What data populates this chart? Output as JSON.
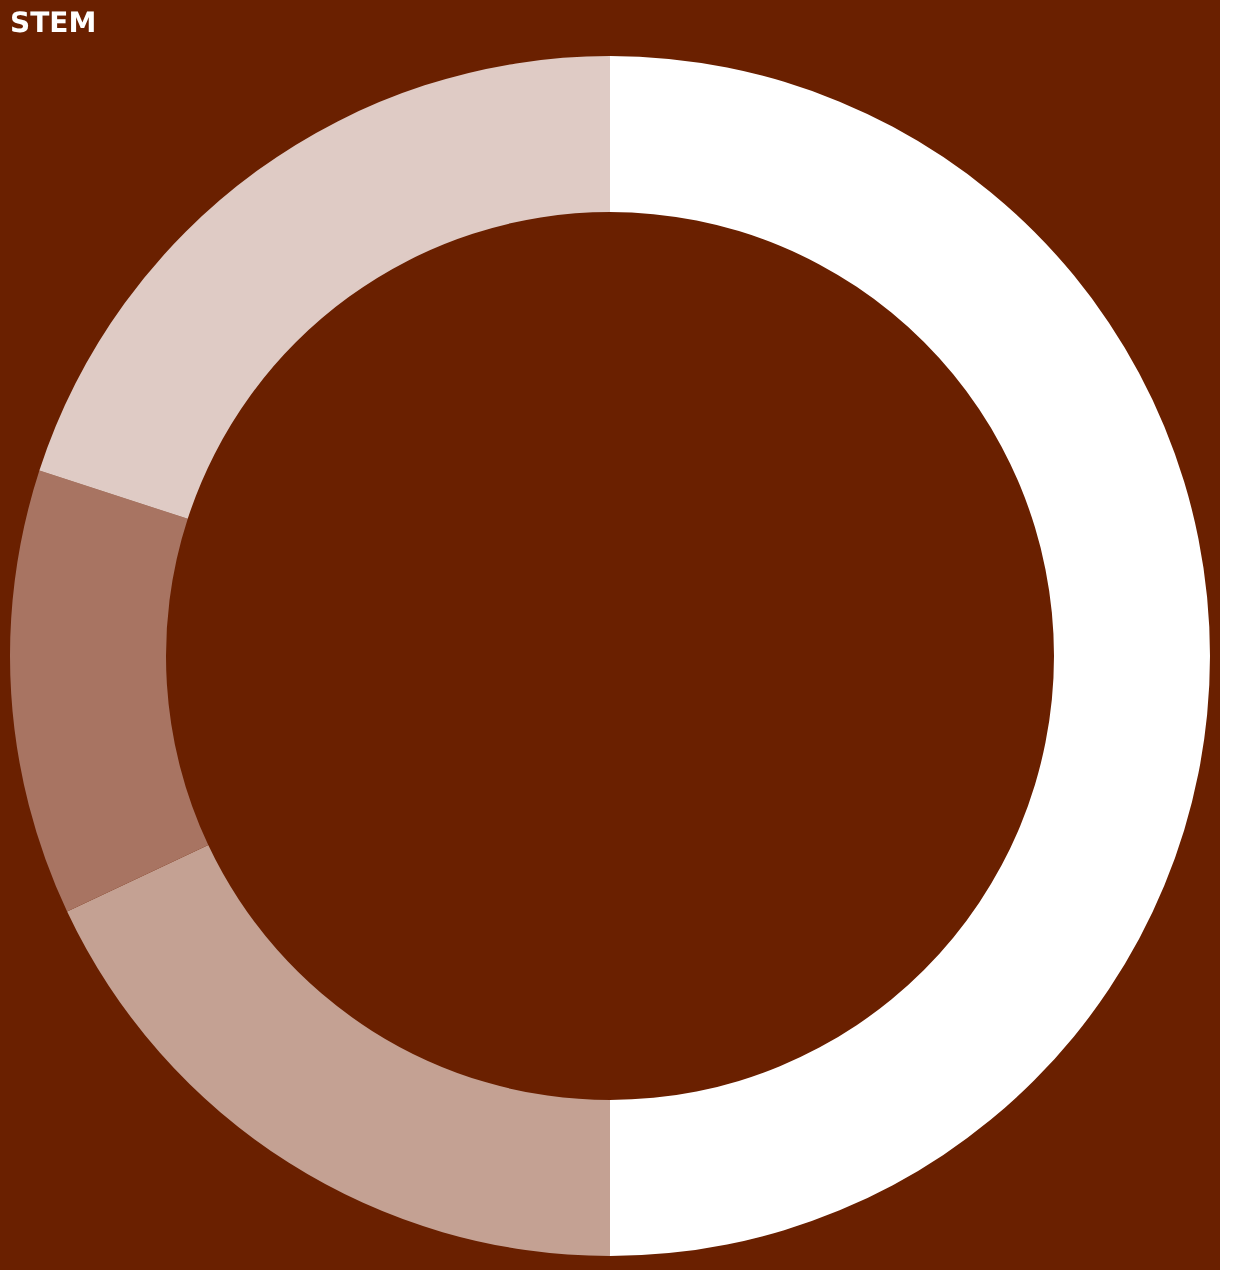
{
  "chart_data": {
    "type": "donut",
    "title": "STEM",
    "categories": [
      null,
      null,
      null,
      null
    ],
    "values": [
      50,
      18,
      12,
      20
    ],
    "colors": [
      "#ffffff",
      "#c4a193",
      "#a87462",
      "#dfcbc5"
    ],
    "legend": false
  }
}
